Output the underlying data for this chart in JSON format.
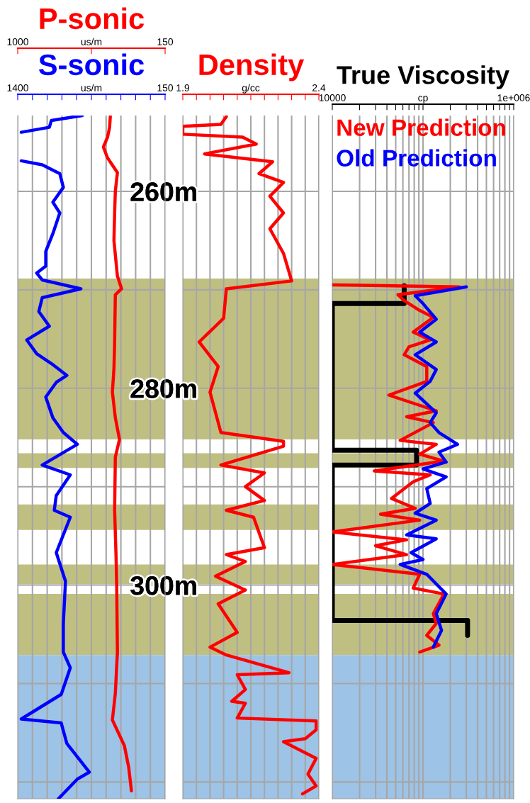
{
  "chart_data": [
    {
      "type": "line",
      "orientation": "horizontal",
      "ylim": [
        321.7,
        252.3
      ],
      "yticks": [
        {
          "value": 260,
          "label": "260m"
        },
        {
          "value": 270,
          "label": null
        },
        {
          "value": 280,
          "label": "280m"
        },
        {
          "value": 290,
          "label": null
        },
        {
          "value": 300,
          "label": "300m"
        },
        {
          "value": 310,
          "label": null
        },
        {
          "value": 320,
          "label": null
        }
      ],
      "xlim": [
        1400,
        150
      ],
      "xticks": [
        1400,
        {
          "value": 1275,
          "label": null
        },
        {
          "value": 1150,
          "label": null
        },
        {
          "value": 1025,
          "label": null
        },
        {
          "value": 900,
          "label": null
        },
        {
          "value": 775,
          "label": "us/m"
        },
        {
          "value": 650,
          "label": null
        },
        {
          "value": 525,
          "label": null
        },
        {
          "value": 400,
          "label": null
        },
        {
          "value": 275,
          "label": null
        },
        150
      ],
      "x2lim": [
        1000,
        150
      ],
      "x2ticks": [
        1000,
        {
          "value": 575,
          "label": "us/m"
        },
        150
      ],
      "grid": true,
      "bands": [
        {
          "axis": "y",
          "from": 268.85,
          "to": 285.2,
          "color": "#c0bf82"
        },
        {
          "axis": "y",
          "from": 286.6,
          "to": 288.1,
          "color": "#c0bf82"
        },
        {
          "axis": "y",
          "from": 291.8,
          "to": 294.4,
          "color": "#c0bf82"
        },
        {
          "axis": "y",
          "from": 297.9,
          "to": 299.9,
          "color": "#c0bf82"
        },
        {
          "axis": "y",
          "from": 300.9,
          "to": 307.1,
          "color": "#c0bf82"
        },
        {
          "axis": "y",
          "from": 307.1,
          "to": 321.7,
          "color": "#9dc3e6"
        }
      ],
      "series": [
        {
          "name": "P-sonic",
          "color": "#ff0000",
          "axis": "x2",
          "x": [
            252.4,
            253.5,
            254.5,
            255.5,
            256.6,
            258.1,
            260.0,
            262.2,
            265.0,
            268.6,
            269.9,
            270.5,
            275.3,
            278.0,
            280.4,
            283.0,
            285.2,
            287.0,
            292.4,
            297.0,
            300.0,
            306.8,
            311.0,
            313.7,
            316.3,
            318.5,
            320.9
          ],
          "values": [
            466,
            470,
            482,
            506,
            482,
            425,
            437,
            441,
            445,
            425,
            401,
            437,
            441,
            445,
            454,
            437,
            413,
            437,
            441,
            433,
            429,
            425,
            437,
            454,
            385,
            360,
            344
          ]
        },
        {
          "name": "S-sonic",
          "color": "#0000ff",
          "x": [
            252.3,
            252.8,
            253.5,
            254.0,
            255.5,
            256.9,
            257.3,
            258.2,
            259.6,
            261.1,
            262.2,
            264.3,
            266.1,
            267.6,
            268.3,
            269.0,
            269.9,
            270.8,
            272.2,
            273.7,
            275.1,
            276.5,
            277.6,
            278.7,
            279.4,
            280.9,
            283.0,
            284.5,
            285.7,
            287.8,
            288.8,
            290.9,
            292.4,
            293.1,
            296.7,
            299.6,
            303.9,
            306.8,
            308.4,
            311.1,
            313.6,
            314.0,
            316.1,
            319.0,
            319.7,
            321.7
          ],
          "values": [
            852,
            1114,
            1132,
            1370,
            null,
            1370,
            1192,
            1043,
            1013,
            1102,
            1043,
            1102,
            1162,
            1162,
            1239,
            1192,
            864,
            1192,
            1221,
            1132,
            1323,
            1239,
            1102,
            983,
            1073,
            1162,
            1102,
            1013,
            894,
            1192,
            954,
            1073,
            1090,
            954,
            1073,
            995,
            1013,
            1013,
            954,
            1031,
            1370,
            1031,
            983,
            793,
            894,
            1055
          ]
        }
      ]
    },
    {
      "type": "line",
      "orientation": "horizontal",
      "ylim": [
        321.7,
        252.3
      ],
      "yticks": [
        260,
        270,
        280,
        290,
        300,
        310,
        320
      ],
      "tick_labels": "x",
      "xlim": [
        1.9,
        2.4
      ],
      "xticks": [
        1.9,
        {
          "value": 1.95,
          "label": null
        },
        {
          "value": 2.0,
          "label": null
        },
        {
          "value": 2.05,
          "label": null
        },
        {
          "value": 2.1,
          "label": null
        },
        {
          "value": 2.15,
          "label": "g/cc"
        },
        {
          "value": 2.2,
          "label": null
        },
        {
          "value": 2.25,
          "label": null
        },
        {
          "value": 2.3,
          "label": null
        },
        {
          "value": 2.35,
          "label": null
        },
        2.4
      ],
      "grid": true,
      "bands": [
        {
          "axis": "y",
          "from": 268.85,
          "to": 285.2,
          "color": "#c0bf82"
        },
        {
          "axis": "y",
          "from": 286.6,
          "to": 288.1,
          "color": "#c0bf82"
        },
        {
          "axis": "y",
          "from": 291.8,
          "to": 294.4,
          "color": "#c0bf82"
        },
        {
          "axis": "y",
          "from": 297.9,
          "to": 299.9,
          "color": "#c0bf82"
        },
        {
          "axis": "y",
          "from": 300.9,
          "to": 307.1,
          "color": "#c0bf82"
        },
        {
          "axis": "y",
          "from": 307.1,
          "to": 321.7,
          "color": "#9dc3e6"
        }
      ],
      "series": [
        {
          "name": "Density",
          "color": "#ff0000",
          "x": [
            252.4,
            253.2,
            253.4,
            254.2,
            254.5,
            255.2,
            256.2,
            257.0,
            258.2,
            259.1,
            260.5,
            262.2,
            263.8,
            266.3,
            269.1,
            269.9,
            272.9,
            275.3,
            277.8,
            280.4,
            284.5,
            285.4,
            285.9,
            287.8,
            288.6,
            290.0,
            291.4,
            292.4,
            293.1,
            296.2,
            296.9,
            297.6,
            299.1,
            300.5,
            301.9,
            304.8,
            306.3,
            307.1,
            308.9,
            309.1,
            310.6,
            311.8,
            312.0,
            313.5,
            313.8,
            314.7,
            315.6,
            315.9,
            317.6,
            319.2,
            320.4,
            321.2
          ],
          "values": [
            2.06,
            2.04,
            1.9,
            1.9,
            2.12,
            2.17,
            1.98,
            2.23,
            2.18,
            2.27,
            2.22,
            2.27,
            2.22,
            2.27,
            2.3,
            2.06,
            2.05,
            1.96,
            2.03,
            2.0,
            2.04,
            2.27,
            2.27,
            2.04,
            2.2,
            2.13,
            2.2,
            2.06,
            2.16,
            2.2,
            2.06,
            2.13,
            2.02,
            2.13,
            2.03,
            2.1,
            2.0,
            2.06,
            2.29,
            2.1,
            2.13,
            2.08,
            2.13,
            2.1,
            2.39,
            2.39,
            2.35,
            2.27,
            2.39,
            2.36,
            2.39,
            2.34
          ]
        }
      ]
    },
    {
      "type": "line",
      "orientation": "horizontal",
      "ylim": [
        321.7,
        252.3
      ],
      "yticks": [
        260,
        270,
        280,
        290,
        300,
        310,
        320
      ],
      "tick_labels": "x",
      "log": "x",
      "xlim": [
        10000,
        1000000
      ],
      "xticks": [
        10000,
        {
          "value": 20000,
          "label": null
        },
        {
          "value": 30000,
          "label": null
        },
        {
          "value": 40000,
          "label": null
        },
        {
          "value": 50000,
          "label": null
        },
        {
          "value": 60000,
          "label": null
        },
        {
          "value": 70000,
          "label": null
        },
        {
          "value": 80000,
          "label": null
        },
        {
          "value": 90000,
          "label": null
        },
        {
          "value": 100000,
          "label": "cp"
        },
        {
          "value": 200000,
          "label": null
        },
        {
          "value": 300000,
          "label": null
        },
        {
          "value": 400000,
          "label": null
        },
        {
          "value": 500000,
          "label": null
        },
        {
          "value": 600000,
          "label": null
        },
        {
          "value": 700000,
          "label": null
        },
        {
          "value": 800000,
          "label": null
        },
        {
          "value": 900000,
          "label": null
        },
        {
          "value": 1000000,
          "label": "1e+006"
        }
      ],
      "grid": true,
      "bands": [
        {
          "axis": "y",
          "from": 268.85,
          "to": 285.2,
          "color": "#c0bf82"
        },
        {
          "axis": "y",
          "from": 286.6,
          "to": 288.1,
          "color": "#c0bf82"
        },
        {
          "axis": "y",
          "from": 291.8,
          "to": 294.4,
          "color": "#c0bf82"
        },
        {
          "axis": "y",
          "from": 297.9,
          "to": 299.9,
          "color": "#c0bf82"
        },
        {
          "axis": "y",
          "from": 300.9,
          "to": 307.1,
          "color": "#c0bf82"
        },
        {
          "axis": "y",
          "from": 307.1,
          "to": 321.7,
          "color": "#9dc3e6"
        }
      ],
      "series": [
        {
          "name": "True Viscosity",
          "color": "#000000",
          "x": [
            269.6,
            271.4,
            271.4,
            286.3,
            286.3,
            287.8,
            287.8,
            303.6,
            303.6,
            305.1
          ],
          "values": [
            62000,
            62000,
            10000,
            10000,
            85000,
            85000,
            10000,
            10000,
            310000,
            310000
          ]
        },
        {
          "name": "New Prediction",
          "color": "#ff0000",
          "x": [
            269.5,
            269.7,
            270.5,
            271.1,
            272.1,
            272.8,
            274.3,
            275.1,
            275.8,
            276.6,
            277.8,
            279.3,
            280.7,
            282.3,
            282.9,
            283.5,
            285.3,
            285.7,
            286.7,
            287.4,
            288.4,
            288.8,
            289.5,
            291.2,
            292.2,
            292.8,
            293.4,
            294.6,
            295.4,
            296.0,
            296.9,
            297.9,
            298.9,
            300.3,
            300.9,
            302.9,
            303.9,
            305.1,
            306.1,
            306.8
          ],
          "values": [
            10000,
            250000,
            53000,
            62000,
            92000,
            130000,
            78000,
            120000,
            70000,
            62000,
            110000,
            110000,
            42000,
            140000,
            66000,
            130000,
            56000,
            140000,
            92000,
            170000,
            29000,
            120000,
            78000,
            45000,
            82000,
            34000,
            92000,
            10000,
            66000,
            30000,
            66000,
            10000,
            92000,
            78000,
            170000,
            130000,
            140000,
            110000,
            150000,
            92000
          ]
        },
        {
          "name": "Old Prediction",
          "color": "#0000ff",
          "x": [
            269.7,
            270.6,
            271.4,
            273.0,
            274.3,
            275.3,
            276.6,
            278.1,
            279.3,
            280.5,
            282.5,
            283.5,
            284.5,
            285.7,
            286.5,
            287.5,
            288.2,
            289.0,
            290.2,
            291.7,
            292.7,
            293.4,
            294.9,
            295.3,
            296.7,
            297.4,
            297.9,
            298.9,
            300.9,
            302.9,
            304.6,
            306.3
          ],
          "values": [
            300000,
            82000,
            100000,
            140000,
            92000,
            140000,
            82000,
            140000,
            120000,
            82000,
            140000,
            120000,
            150000,
            240000,
            150000,
            180000,
            100000,
            180000,
            110000,
            120000,
            82000,
            140000,
            66000,
            140000,
            74000,
            100000,
            56000,
            110000,
            180000,
            140000,
            160000,
            130000
          ]
        }
      ]
    }
  ]
}
